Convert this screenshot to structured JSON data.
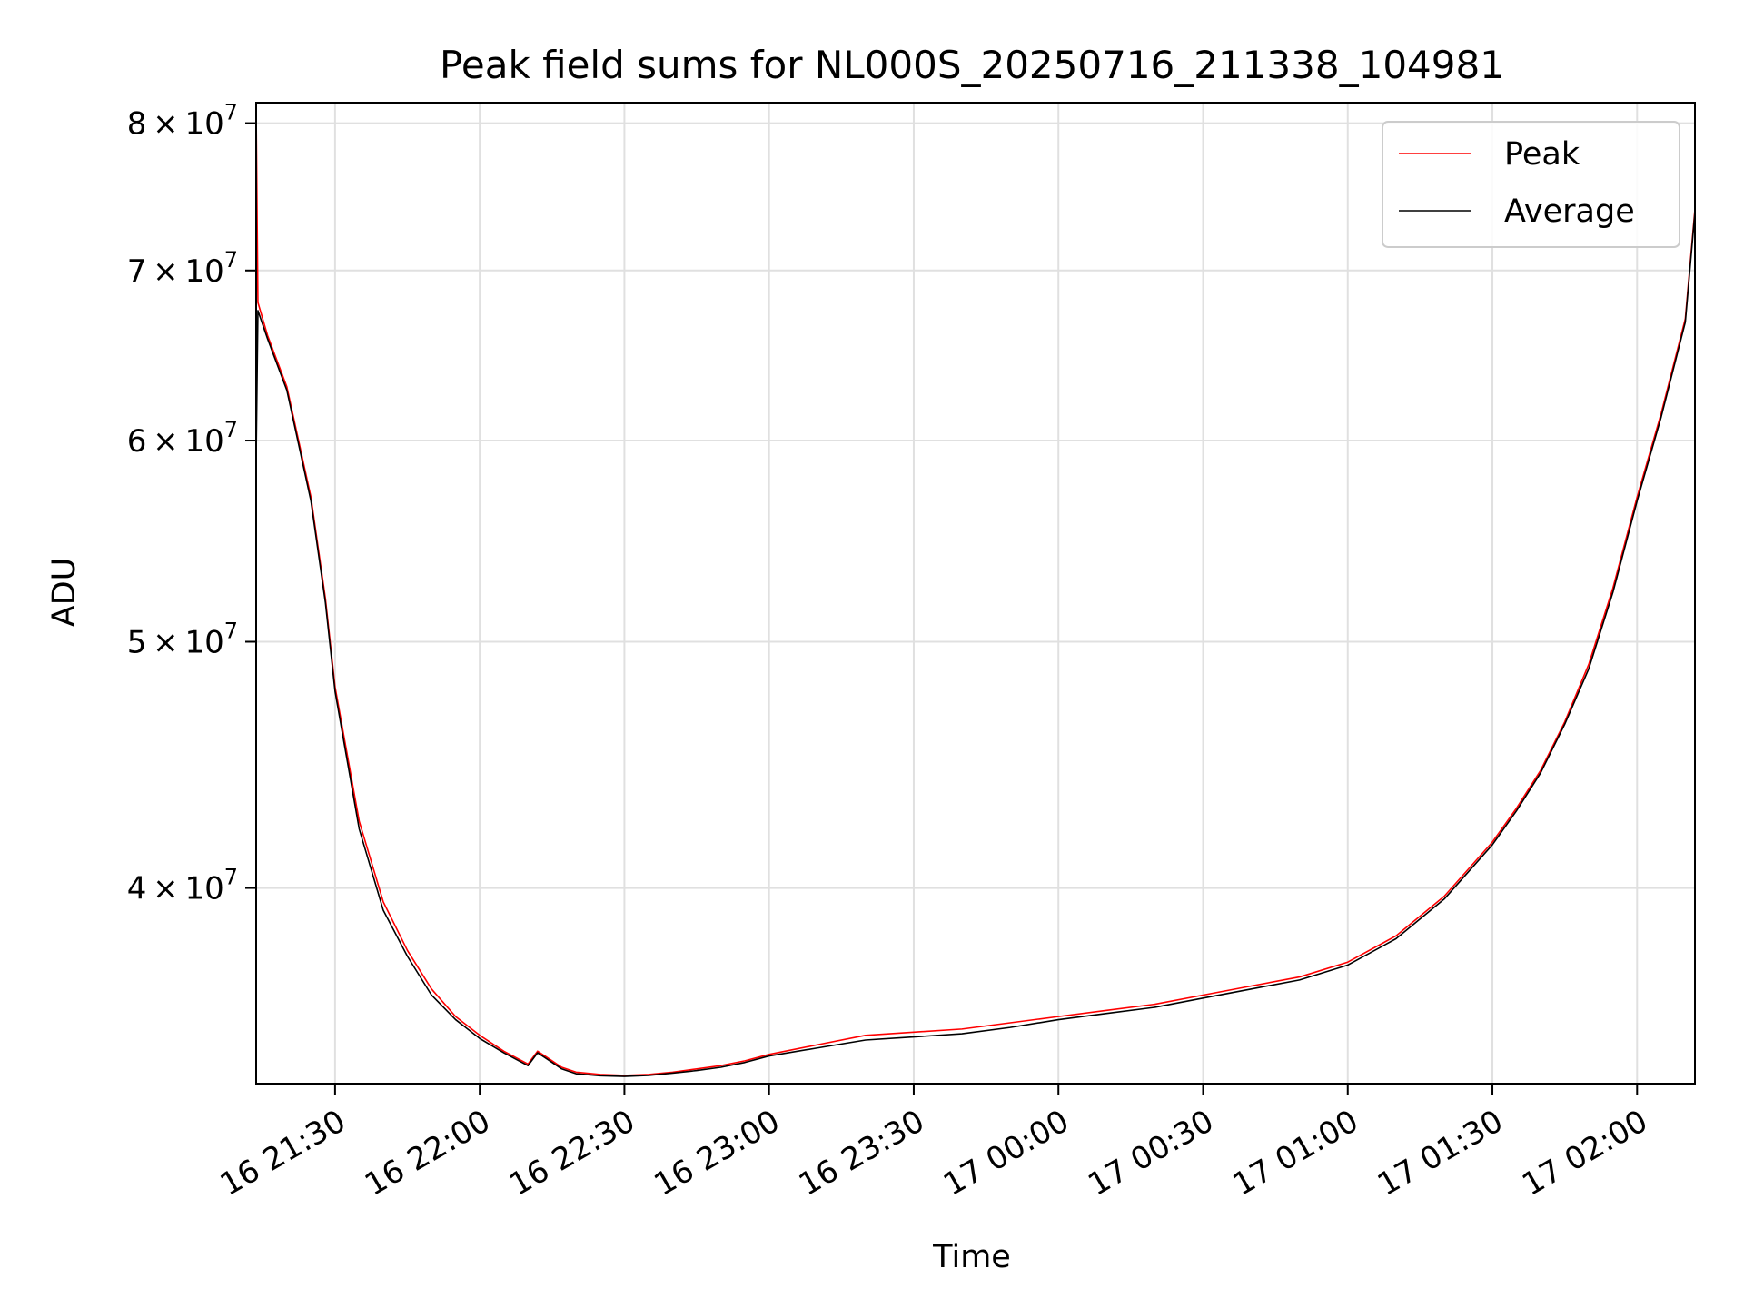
{
  "chart_data": {
    "type": "line",
    "title": "Peak field sums for NL000S_20250716_211338_104981",
    "xlabel": "Time",
    "ylabel": "ADU",
    "xlim": [
      "2025-07-16 21:13:38",
      "2025-07-17 02:12:00"
    ],
    "ylim": [
      33500000,
      81500000
    ],
    "yscale": "log",
    "grid": true,
    "legend_position": "top-right",
    "x_ticks": [
      {
        "value": "2025-07-16 21:30",
        "label": "16 21:30"
      },
      {
        "value": "2025-07-16 22:00",
        "label": "16 22:00"
      },
      {
        "value": "2025-07-16 22:30",
        "label": "16 22:30"
      },
      {
        "value": "2025-07-16 23:00",
        "label": "16 23:00"
      },
      {
        "value": "2025-07-16 23:30",
        "label": "16 23:30"
      },
      {
        "value": "2025-07-17 00:00",
        "label": "17 00:00"
      },
      {
        "value": "2025-07-17 00:30",
        "label": "17 00:30"
      },
      {
        "value": "2025-07-17 01:00",
        "label": "17 01:00"
      },
      {
        "value": "2025-07-17 01:30",
        "label": "17 01:30"
      },
      {
        "value": "2025-07-17 02:00",
        "label": "17 02:00"
      }
    ],
    "y_ticks": [
      {
        "value": 40000000,
        "mantissa": "4",
        "base": "10",
        "exponent": "7"
      },
      {
        "value": 50000000,
        "mantissa": "5",
        "base": "10",
        "exponent": "7"
      },
      {
        "value": 60000000,
        "mantissa": "6",
        "base": "10",
        "exponent": "7"
      },
      {
        "value": 70000000,
        "mantissa": "7",
        "base": "10",
        "exponent": "7"
      },
      {
        "value": 80000000,
        "mantissa": "8",
        "base": "10",
        "exponent": "7"
      }
    ],
    "series": [
      {
        "name": "Peak",
        "color": "#ff0000",
        "x": [
          "2025-07-16 21:13:38",
          "2025-07-16 21:14:00",
          "2025-07-16 21:16:00",
          "2025-07-16 21:20:00",
          "2025-07-16 21:25:00",
          "2025-07-16 21:28:00",
          "2025-07-16 21:30:00",
          "2025-07-16 21:35:00",
          "2025-07-16 21:40:00",
          "2025-07-16 21:45:00",
          "2025-07-16 21:50:00",
          "2025-07-16 21:55:00",
          "2025-07-16 22:00:00",
          "2025-07-16 22:05:00",
          "2025-07-16 22:10:00",
          "2025-07-16 22:12:00",
          "2025-07-16 22:14:00",
          "2025-07-16 22:17:00",
          "2025-07-16 22:20:00",
          "2025-07-16 22:25:00",
          "2025-07-16 22:30:00",
          "2025-07-16 22:35:00",
          "2025-07-16 22:40:00",
          "2025-07-16 22:45:00",
          "2025-07-16 22:50:00",
          "2025-07-16 22:55:00",
          "2025-07-16 23:00:00",
          "2025-07-16 23:10:00",
          "2025-07-16 23:20:00",
          "2025-07-16 23:30:00",
          "2025-07-16 23:40:00",
          "2025-07-16 23:50:00",
          "2025-07-17 00:00:00",
          "2025-07-17 00:10:00",
          "2025-07-17 00:20:00",
          "2025-07-17 00:30:00",
          "2025-07-17 00:40:00",
          "2025-07-17 00:50:00",
          "2025-07-17 01:00:00",
          "2025-07-17 01:10:00",
          "2025-07-17 01:20:00",
          "2025-07-17 01:30:00",
          "2025-07-17 01:35:00",
          "2025-07-17 01:40:00",
          "2025-07-17 01:45:00",
          "2025-07-17 01:50:00",
          "2025-07-17 01:55:00",
          "2025-07-17 02:00:00",
          "2025-07-17 02:05:00",
          "2025-07-17 02:10:00",
          "2025-07-17 02:12:00"
        ],
        "y": [
          81000000,
          68000000,
          66000000,
          63000000,
          57000000,
          52000000,
          48000000,
          42500000,
          39500000,
          37800000,
          36500000,
          35600000,
          35000000,
          34500000,
          34100000,
          34500000,
          34300000,
          34000000,
          33850000,
          33780000,
          33750000,
          33780000,
          33850000,
          33950000,
          34050000,
          34200000,
          34400000,
          34700000,
          35000000,
          35100000,
          35200000,
          35400000,
          35600000,
          35800000,
          36000000,
          36300000,
          36600000,
          36900000,
          37400000,
          38300000,
          39700000,
          41700000,
          43000000,
          44500000,
          46500000,
          49000000,
          52500000,
          57000000,
          61500000,
          67000000,
          74000000
        ]
      },
      {
        "name": "Average",
        "color": "#000000",
        "x": [
          "2025-07-16 21:13:38",
          "2025-07-16 21:14:00",
          "2025-07-16 21:16:00",
          "2025-07-16 21:20:00",
          "2025-07-16 21:25:00",
          "2025-07-16 21:28:00",
          "2025-07-16 21:30:00",
          "2025-07-16 21:35:00",
          "2025-07-16 21:40:00",
          "2025-07-16 21:45:00",
          "2025-07-16 21:50:00",
          "2025-07-16 21:55:00",
          "2025-07-16 22:00:00",
          "2025-07-16 22:05:00",
          "2025-07-16 22:10:00",
          "2025-07-16 22:12:00",
          "2025-07-16 22:14:00",
          "2025-07-16 22:17:00",
          "2025-07-16 22:20:00",
          "2025-07-16 22:25:00",
          "2025-07-16 22:30:00",
          "2025-07-16 22:35:00",
          "2025-07-16 22:40:00",
          "2025-07-16 22:45:00",
          "2025-07-16 22:50:00",
          "2025-07-16 22:55:00",
          "2025-07-16 23:00:00",
          "2025-07-16 23:10:00",
          "2025-07-16 23:20:00",
          "2025-07-16 23:30:00",
          "2025-07-16 23:40:00",
          "2025-07-16 23:50:00",
          "2025-07-17 00:00:00",
          "2025-07-17 00:10:00",
          "2025-07-17 00:20:00",
          "2025-07-17 00:30:00",
          "2025-07-17 00:40:00",
          "2025-07-17 00:50:00",
          "2025-07-17 01:00:00",
          "2025-07-17 01:10:00",
          "2025-07-17 01:20:00",
          "2025-07-17 01:30:00",
          "2025-07-17 01:35:00",
          "2025-07-17 01:40:00",
          "2025-07-17 01:45:00",
          "2025-07-17 01:50:00",
          "2025-07-17 01:55:00",
          "2025-07-17 02:00:00",
          "2025-07-17 02:05:00",
          "2025-07-17 02:10:00",
          "2025-07-17 02:12:00"
        ],
        "y": [
          59000000,
          67500000,
          65800000,
          62800000,
          56800000,
          51800000,
          47800000,
          42200000,
          39200000,
          37600000,
          36300000,
          35500000,
          34900000,
          34450000,
          34050000,
          34450000,
          34250000,
          33950000,
          33800000,
          33740000,
          33720000,
          33750000,
          33820000,
          33900000,
          34000000,
          34150000,
          34350000,
          34600000,
          34850000,
          34950000,
          35050000,
          35250000,
          35500000,
          35700000,
          35900000,
          36200000,
          36500000,
          36800000,
          37300000,
          38200000,
          39600000,
          41600000,
          42900000,
          44400000,
          46400000,
          48800000,
          52300000,
          56800000,
          61300000,
          66800000,
          73800000
        ]
      }
    ]
  }
}
